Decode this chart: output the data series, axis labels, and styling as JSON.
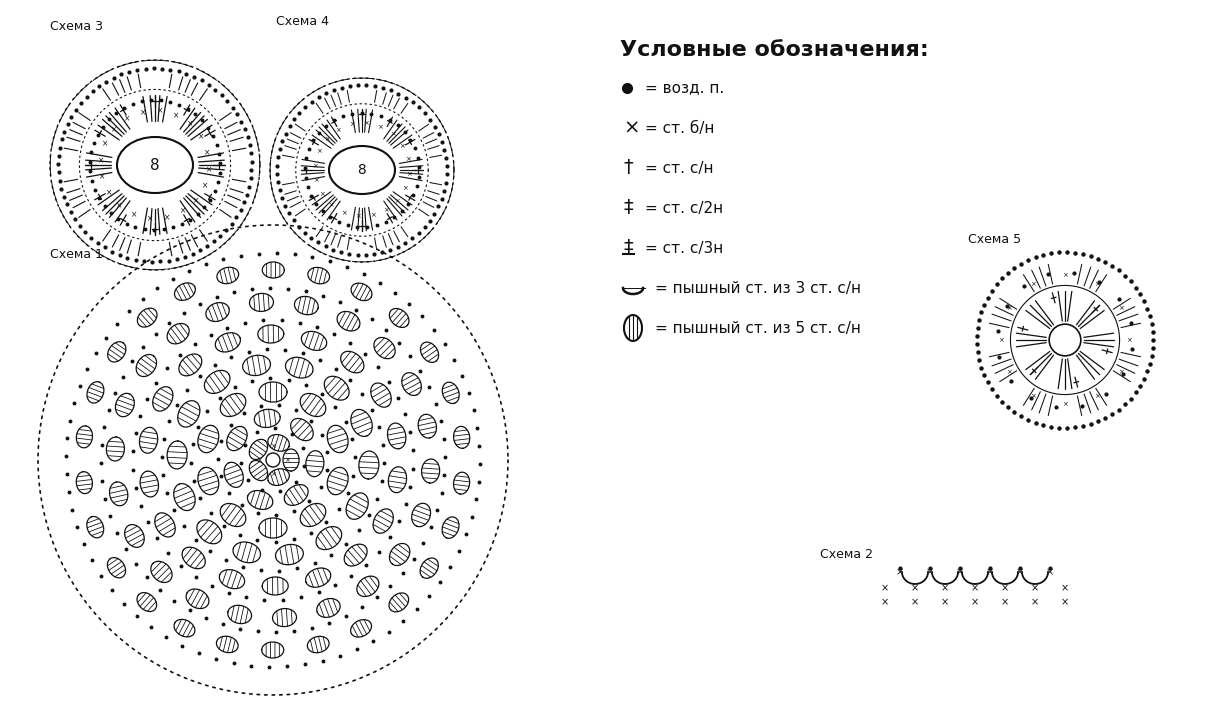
{
  "bg_color": "#ffffff",
  "legend_title": "Условные обозначения:",
  "schema_labels": {
    "schema1": "Схема 1",
    "schema2": "Схема 2",
    "schema3": "Схема 3",
    "schema4": "Схема 4",
    "schema5": "Схема 5"
  },
  "circle_number": "8",
  "line_color": "#111111",
  "figsize": [
    12.27,
    7.08
  ],
  "dpi": 100
}
